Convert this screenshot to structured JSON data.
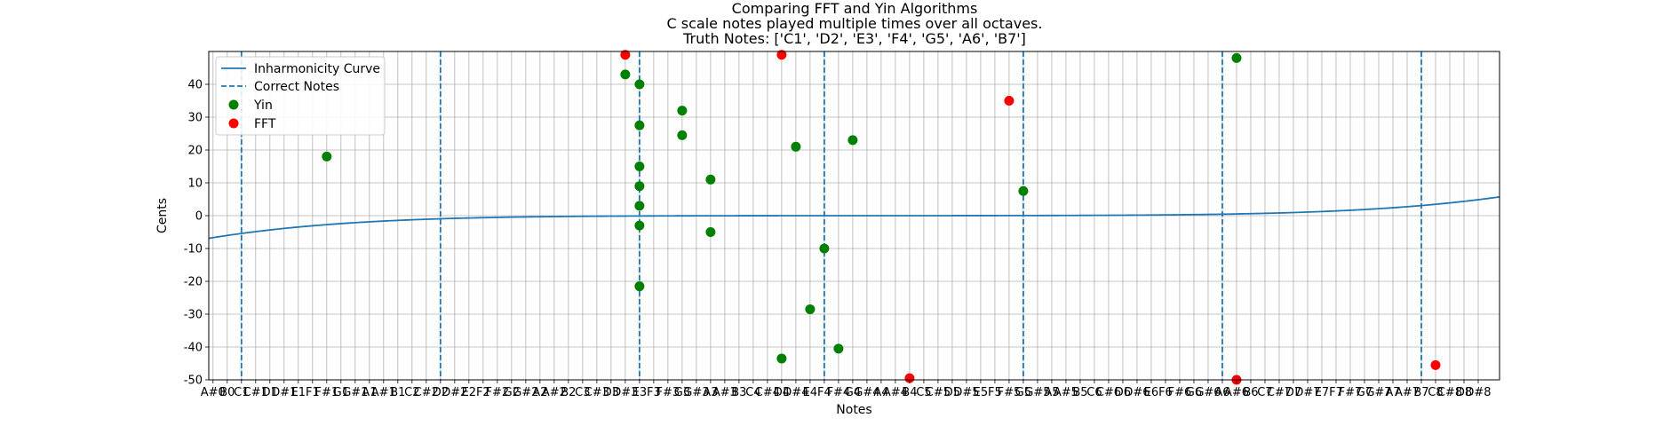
{
  "chart_data": {
    "type": "scatter",
    "title": [
      "Comparing FFT and Yin Algorithms",
      "C scale notes played multiple times over all octaves.",
      "Truth Notes: ['C1', 'D2', 'E3', 'F4', 'G5', 'A6', 'B7']"
    ],
    "xlabel": "Notes",
    "ylabel": "Cents",
    "ylim": [
      -50,
      50
    ],
    "yticks": [
      -50,
      -40,
      -30,
      -20,
      -10,
      0,
      10,
      20,
      30,
      40
    ],
    "grid": true,
    "legend_position": "upper-left",
    "notes": [
      "A#0",
      "B0",
      "C1",
      "C#1",
      "D1",
      "D#1",
      "E1",
      "F1",
      "F#1",
      "G1",
      "G#1",
      "A1",
      "A#1",
      "B1",
      "C2",
      "C#2",
      "D2",
      "D#2",
      "E2",
      "F2",
      "F#2",
      "G2",
      "G#2",
      "A2",
      "A#2",
      "B2",
      "C3",
      "C#3",
      "D3",
      "D#3",
      "E3",
      "F3",
      "F#3",
      "G3",
      "G#3",
      "A3",
      "A#3",
      "B3",
      "C4",
      "C#4",
      "D4",
      "D#4",
      "E4",
      "F4",
      "F#4",
      "G4",
      "G#4",
      "A4",
      "A#4",
      "B4",
      "C5",
      "C#5",
      "D5",
      "D#5",
      "E5",
      "F5",
      "F#5",
      "G5",
      "G#5",
      "A5",
      "A#5",
      "B5",
      "C6",
      "C#6",
      "D6",
      "D#6",
      "E6",
      "F6",
      "F#6",
      "G6",
      "G#6",
      "A6",
      "A#6",
      "B6",
      "C7",
      "C#7",
      "D7",
      "D#7",
      "E7",
      "F7",
      "F#7",
      "G7",
      "G#7",
      "A7",
      "A#7",
      "B7",
      "C8",
      "C#8",
      "D8",
      "D#8"
    ],
    "correct_notes": [
      "C1",
      "D2",
      "E3",
      "F4",
      "G5",
      "A6",
      "B7"
    ],
    "inharmonicity_curve": {
      "x_range": [
        -0.3,
        90.5
      ],
      "center": 46.0,
      "a": 0.000245,
      "b": 3e-08,
      "exponent_a": 2,
      "exponent_b": 5
    },
    "series": [
      {
        "name": "Yin",
        "color": "#008000",
        "points": [
          {
            "note": "F#1",
            "cents": 18
          },
          {
            "note": "D#3",
            "cents": 43
          },
          {
            "note": "E3",
            "cents": 40
          },
          {
            "note": "E3",
            "cents": 27.5
          },
          {
            "note": "E3",
            "cents": 15
          },
          {
            "note": "E3",
            "cents": 9
          },
          {
            "note": "E3",
            "cents": 3
          },
          {
            "note": "E3",
            "cents": -3
          },
          {
            "note": "E3",
            "cents": -21.5
          },
          {
            "note": "G3",
            "cents": 32
          },
          {
            "note": "G3",
            "cents": 24.5
          },
          {
            "note": "A3",
            "cents": 11
          },
          {
            "note": "A3",
            "cents": -5
          },
          {
            "note": "D4",
            "cents": -43.5
          },
          {
            "note": "D#4",
            "cents": 21
          },
          {
            "note": "E4",
            "cents": -28.5
          },
          {
            "note": "F4",
            "cents": -10
          },
          {
            "note": "F#4",
            "cents": -40.5
          },
          {
            "note": "G4",
            "cents": 23
          },
          {
            "note": "G5",
            "cents": 7.5
          },
          {
            "note": "A#6",
            "cents": 48
          }
        ]
      },
      {
        "name": "FFT",
        "color": "#ff0000",
        "points": [
          {
            "note": "D#3",
            "cents": 49
          },
          {
            "note": "D4",
            "cents": 49
          },
          {
            "note": "B4",
            "cents": -49.5
          },
          {
            "note": "F#5",
            "cents": 35
          },
          {
            "note": "A#6",
            "cents": -50
          },
          {
            "note": "C8",
            "cents": -45.5
          }
        ]
      }
    ],
    "legend": [
      {
        "label": "Inharmonicity Curve",
        "style": "line"
      },
      {
        "label": "Correct Notes",
        "style": "dashed"
      },
      {
        "label": "Yin",
        "style": "marker",
        "color": "#008000"
      },
      {
        "label": "FFT",
        "style": "marker",
        "color": "#ff0000"
      }
    ],
    "colors": {
      "curve": "#1f77b4",
      "grid": "#b0b0b0"
    }
  }
}
